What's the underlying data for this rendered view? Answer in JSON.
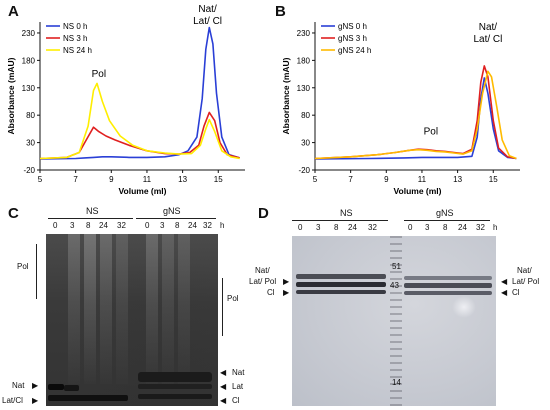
{
  "panels": {
    "A": {
      "letter": "A",
      "ylabel": "Absorbance (mAU)",
      "xlabel": "Volume (ml)",
      "annotations": {
        "pol": "Pol",
        "nat": "Nat/",
        "lat": "Lat/ Cl"
      },
      "legend": [
        "NS 0 h",
        "NS 3 h",
        "NS 24 h"
      ]
    },
    "B": {
      "letter": "B",
      "ylabel": "Absorbance (mAU)",
      "xlabel": "Volume (ml)",
      "annotations": {
        "pol": "Pol",
        "nat": "Nat/",
        "lat": "Lat/ Cl"
      },
      "legend": [
        "gNS 0 h",
        "gNS 3 h",
        "gNS 24 h"
      ]
    },
    "C": {
      "letter": "C",
      "group_ns": "NS",
      "group_gns": "gNS",
      "lanes": [
        "0",
        "3",
        "8",
        "24",
        "32",
        "0",
        "3",
        "8",
        "24",
        "32"
      ],
      "unit": "h",
      "pol": "Pol",
      "left_marks": [
        "Nat",
        "Lat/Cl"
      ],
      "right_marks": [
        "Nat",
        "Lat",
        "Cl"
      ]
    },
    "D": {
      "letter": "D",
      "group_ns": "NS",
      "group_gns": "gNS",
      "lanes": [
        "0",
        "3",
        "8",
        "24",
        "32",
        "0",
        "3",
        "8",
        "24",
        "32"
      ],
      "unit": "h",
      "left_marks": [
        "Nat/",
        "Lat/ Pol",
        "Cl"
      ],
      "right_marks": [
        "Nat/",
        "Lat/ Pol",
        "Cl"
      ],
      "markers": [
        "51",
        "43",
        "14"
      ]
    }
  },
  "chart_data": [
    {
      "type": "line",
      "panel": "A",
      "xlabel": "Volume (ml)",
      "ylabel": "Absorbance (mAU)",
      "xlim": [
        5,
        16.5
      ],
      "ylim": [
        -20,
        250
      ],
      "xticks": [
        5,
        7,
        9,
        11,
        13,
        15
      ],
      "yticks": [
        -20,
        30,
        80,
        130,
        180,
        230
      ],
      "legend_position": "top-left",
      "series": [
        {
          "name": "NS 0 h",
          "color": "#2a3fd6",
          "x": [
            5,
            7,
            7.5,
            8,
            8.5,
            9,
            10,
            11,
            12,
            12.8,
            13.3,
            13.8,
            14.1,
            14.3,
            14.5,
            14.7,
            14.9,
            15.2,
            15.6,
            16.2
          ],
          "y": [
            0,
            1,
            2,
            3,
            4,
            4,
            3,
            3,
            4,
            8,
            15,
            40,
            110,
            200,
            240,
            210,
            120,
            40,
            8,
            2
          ]
        },
        {
          "name": "NS 3 h",
          "color": "#e02020",
          "x": [
            5,
            6.5,
            7.2,
            7.6,
            8,
            8.3,
            8.7,
            9.2,
            10,
            11,
            12,
            12.8,
            13.4,
            13.9,
            14.2,
            14.5,
            14.8,
            15.1,
            15.5,
            16.2
          ],
          "y": [
            1,
            3,
            12,
            35,
            58,
            50,
            42,
            35,
            25,
            15,
            10,
            9,
            12,
            25,
            60,
            85,
            70,
            30,
            8,
            2
          ]
        },
        {
          "name": "NS 24 h",
          "color": "#ffee00",
          "x": [
            5,
            6.5,
            7.2,
            7.7,
            8,
            8.2,
            8.5,
            8.9,
            9.5,
            10.2,
            11,
            12,
            12.8,
            13.5,
            14,
            14.3,
            14.5,
            14.8,
            15.2,
            15.7,
            16.2
          ],
          "y": [
            1,
            3,
            12,
            60,
            125,
            138,
            105,
            70,
            42,
            25,
            15,
            11,
            9,
            10,
            25,
            55,
            72,
            50,
            15,
            4,
            1
          ]
        }
      ]
    },
    {
      "type": "line",
      "panel": "B",
      "xlabel": "Volume (ml)",
      "ylabel": "Absorbance (mAU)",
      "xlim": [
        5,
        16.5
      ],
      "ylim": [
        -20,
        250
      ],
      "xticks": [
        5,
        7,
        9,
        11,
        13,
        15
      ],
      "yticks": [
        -20,
        30,
        80,
        130,
        180,
        230
      ],
      "legend_position": "top-left",
      "series": [
        {
          "name": "gNS 0 h",
          "color": "#2a3fd6",
          "x": [
            5,
            8,
            10,
            11,
            12,
            13,
            13.8,
            14.1,
            14.3,
            14.5,
            14.7,
            15,
            15.3,
            15.8,
            16.3
          ],
          "y": [
            0,
            1,
            2,
            3,
            3,
            3,
            5,
            40,
            110,
            148,
            120,
            55,
            15,
            3,
            1
          ]
        },
        {
          "name": "gNS 3 h",
          "color": "#e02020",
          "x": [
            5,
            7,
            8.5,
            9.5,
            10.3,
            10.8,
            11.3,
            11.8,
            12.3,
            12.8,
            13.3,
            13.8,
            14.1,
            14.3,
            14.5,
            14.7,
            15,
            15.3,
            15.8,
            16.3
          ],
          "y": [
            1,
            4,
            8,
            12,
            16,
            18,
            17,
            15,
            14,
            12,
            10,
            18,
            70,
            140,
            170,
            150,
            70,
            20,
            4,
            1
          ]
        },
        {
          "name": "gNS 24 h",
          "color": "#ffbb00",
          "x": [
            5,
            7,
            8.5,
            9.5,
            10.3,
            10.8,
            11.3,
            11.8,
            12.3,
            12.8,
            13.3,
            13.8,
            14.1,
            14.4,
            14.7,
            14.9,
            15.2,
            15.5,
            15.9,
            16.3
          ],
          "y": [
            1,
            4,
            8,
            12,
            16,
            17,
            16,
            14,
            13,
            11,
            9,
            15,
            55,
            120,
            160,
            150,
            95,
            35,
            6,
            1
          ]
        }
      ]
    }
  ]
}
